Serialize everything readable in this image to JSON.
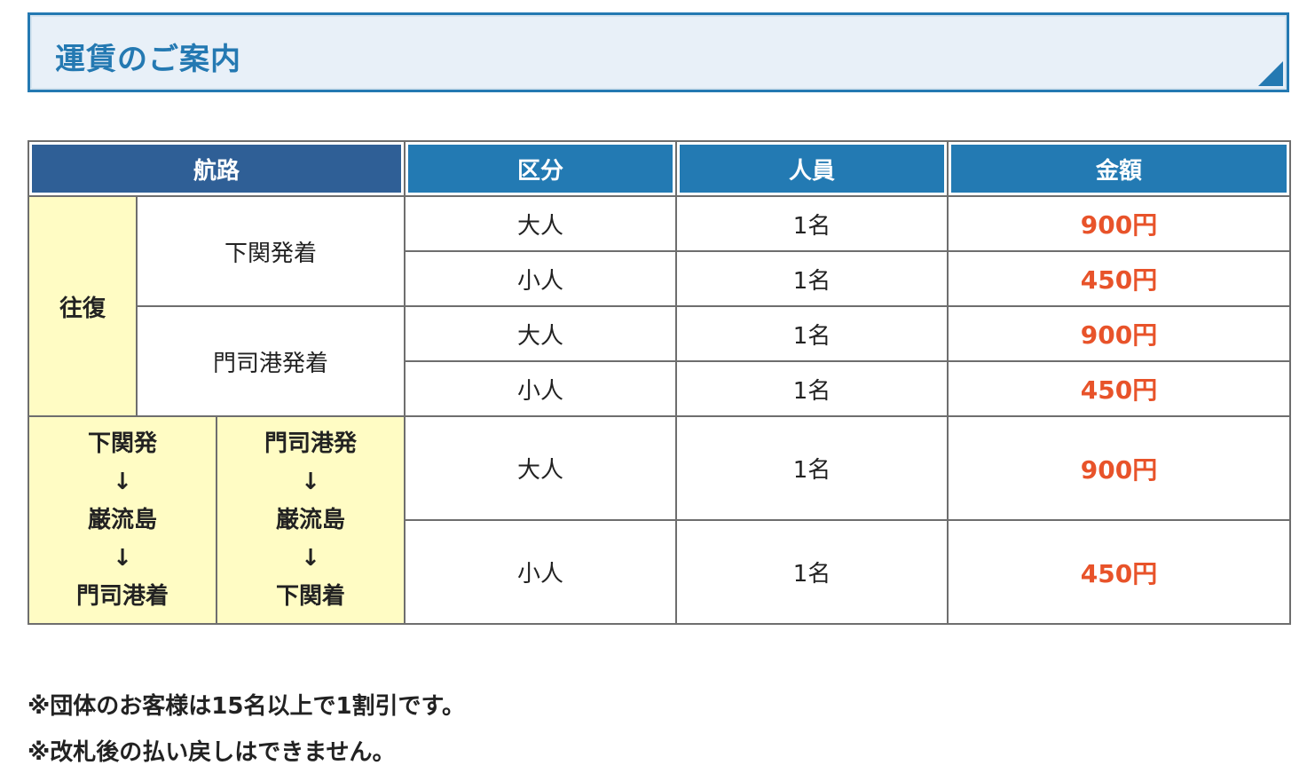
{
  "title": "運賃のご案内",
  "colors": {
    "accent": "#2479b2",
    "header_dark": "#2f5f96",
    "price": "#e8532a",
    "highlight": "#fffcc4"
  },
  "table": {
    "headers": [
      "航路",
      "区分",
      "人員",
      "金額"
    ],
    "round_trip_label": "往復",
    "routes": [
      {
        "name": "下関発着",
        "rows": [
          {
            "type": "大人",
            "count": "1名",
            "price": "900円"
          },
          {
            "type": "小人",
            "count": "1名",
            "price": "450円"
          }
        ]
      },
      {
        "name": "門司港発着",
        "rows": [
          {
            "type": "大人",
            "count": "1名",
            "price": "900円"
          },
          {
            "type": "小人",
            "count": "1名",
            "price": "450円"
          }
        ]
      }
    ],
    "one_way": {
      "left": [
        "下関発",
        "↓",
        "巌流島",
        "↓",
        "門司港着"
      ],
      "right": [
        "門司港発",
        "↓",
        "巌流島",
        "↓",
        "下関着"
      ],
      "rows": [
        {
          "type": "大人",
          "count": "1名",
          "price": "900円"
        },
        {
          "type": "小人",
          "count": "1名",
          "price": "450円"
        }
      ]
    }
  },
  "notes": [
    "※団体のお客様は15名以上で1割引です。",
    "※改札後の払い戻しはできません。"
  ]
}
